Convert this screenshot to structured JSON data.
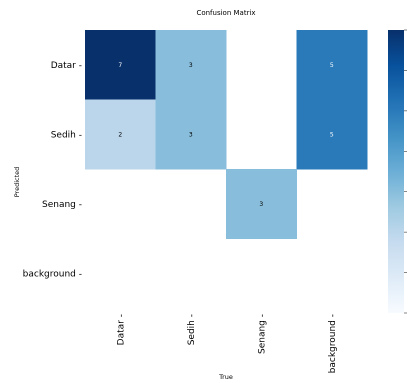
{
  "chart_data": {
    "type": "heatmap",
    "title": "Confusion Matrix",
    "xlabel": "True",
    "ylabel": "Predicted",
    "rows": [
      "Datar",
      "Sedih",
      "Senang",
      "background"
    ],
    "columns": [
      "Datar",
      "Sedih",
      "Senang",
      "background"
    ],
    "values": [
      [
        7,
        3,
        null,
        5
      ],
      [
        2,
        3,
        null,
        5
      ],
      [
        null,
        null,
        3,
        null
      ],
      [
        null,
        null,
        null,
        null
      ]
    ],
    "colormap": "Blues",
    "vmin": 0,
    "vmax": 7,
    "grid": false,
    "colorbar": "right",
    "colors": {
      "low": "#f7fbff",
      "high": "#08306b",
      "text_dark": "#000000",
      "text_light": "#ffffff"
    }
  }
}
